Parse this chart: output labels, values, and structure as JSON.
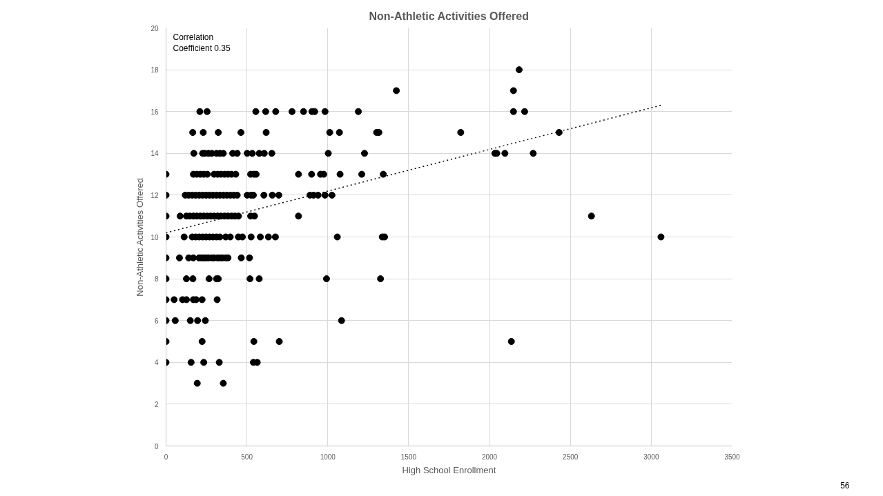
{
  "chart_data": {
    "type": "scatter",
    "title": "Non-Athletic Activities Offered",
    "xlabel": "High School Enrollment",
    "ylabel": "Non-Athletic Activities Offered",
    "xlim": [
      0,
      3500
    ],
    "xticks": [
      0,
      500,
      1000,
      1500,
      2000,
      2500,
      3000,
      3500
    ],
    "ylim": [
      0,
      20
    ],
    "yticks": [
      0,
      2,
      4,
      6,
      8,
      10,
      12,
      14,
      16,
      18,
      20
    ],
    "grid": true,
    "marker": "circle",
    "annotations": [
      "Correlation\nCoefficient 0.35",
      "56"
    ],
    "series": [
      {
        "color": "#000000",
        "x": [
          2183,
          1424,
          2148,
          209,
          254,
          555,
          616,
          678,
          779,
          850,
          902,
          919,
          983,
          1189,
          2148,
          2217,
          165,
          230,
          323,
          463,
          619,
          1012,
          1072,
          1302,
          1316,
          1822,
          2430,
          172,
          226,
          240,
          262,
          283,
          312,
          333,
          354,
          412,
          440,
          502,
          533,
          576,
          607,
          654,
          1003,
          1227,
          2033,
          2045,
          2095,
          2270,
          0,
          169,
          190,
          212,
          233,
          255,
          297,
          319,
          340,
          362,
          383,
          405,
          431,
          523,
          543,
          557,
          819,
          900,
          955,
          975,
          1076,
          1210,
          1343,
          0,
          119,
          140,
          162,
          183,
          205,
          226,
          248,
          269,
          290,
          312,
          333,
          355,
          376,
          398,
          419,
          440,
          502,
          526,
          540,
          605,
          657,
          697,
          890,
          912,
          940,
          983,
          1026,
          0,
          87,
          126,
          147,
          169,
          190,
          212,
          233,
          255,
          276,
          297,
          319,
          340,
          362,
          383,
          405,
          426,
          448,
          523,
          547,
          819,
          2630,
          0,
          112,
          162,
          183,
          205,
          226,
          248,
          269,
          290,
          312,
          333,
          369,
          397,
          447,
          472,
          526,
          583,
          633,
          676,
          1059,
          1337,
          1351,
          3060,
          0,
          83,
          140,
          169,
          204,
          219,
          233,
          247,
          262,
          283,
          297,
          319,
          333,
          348,
          369,
          383,
          465,
          516,
          0,
          126,
          166,
          266,
          312,
          323,
          519,
          576,
          992,
          1326,
          0,
          50,
          102,
          126,
          169,
          186,
          223,
          316,
          0,
          57,
          150,
          195,
          243,
          1085,
          0,
          223,
          543,
          700,
          2135,
          0,
          155,
          233,
          329,
          540,
          564,
          193,
          354
        ],
        "values": [
          18,
          17,
          17,
          16,
          16,
          16,
          16,
          16,
          16,
          16,
          16,
          16,
          16,
          16,
          16,
          16,
          15,
          15,
          15,
          15,
          15,
          15,
          15,
          15,
          15,
          15,
          15,
          14,
          14,
          14,
          14,
          14,
          14,
          14,
          14,
          14,
          14,
          14,
          14,
          14,
          14,
          14,
          14,
          14,
          14,
          14,
          14,
          14,
          13,
          13,
          13,
          13,
          13,
          13,
          13,
          13,
          13,
          13,
          13,
          13,
          13,
          13,
          13,
          13,
          13,
          13,
          13,
          13,
          13,
          13,
          13,
          12,
          12,
          12,
          12,
          12,
          12,
          12,
          12,
          12,
          12,
          12,
          12,
          12,
          12,
          12,
          12,
          12,
          12,
          12,
          12,
          12,
          12,
          12,
          12,
          12,
          12,
          12,
          12,
          11,
          11,
          11,
          11,
          11,
          11,
          11,
          11,
          11,
          11,
          11,
          11,
          11,
          11,
          11,
          11,
          11,
          11,
          11,
          11,
          11,
          11,
          10,
          10,
          10,
          10,
          10,
          10,
          10,
          10,
          10,
          10,
          10,
          10,
          10,
          10,
          10,
          10,
          10,
          10,
          10,
          10,
          10,
          10,
          10,
          9,
          9,
          9,
          9,
          9,
          9,
          9,
          9,
          9,
          9,
          9,
          9,
          9,
          9,
          9,
          9,
          9,
          9,
          8,
          8,
          8,
          8,
          8,
          8,
          8,
          8,
          8,
          8,
          7,
          7,
          7,
          7,
          7,
          7,
          7,
          7,
          6,
          6,
          6,
          6,
          6,
          6,
          5,
          5,
          5,
          5,
          5,
          4,
          4,
          4,
          4,
          4,
          4,
          3,
          3
        ]
      },
      {
        "type": "line",
        "color": "#000000",
        "line_style": "dotted",
        "marker": "none",
        "x": [
          0,
          3060
        ],
        "values": [
          10.2,
          16.3
        ]
      }
    ]
  }
}
